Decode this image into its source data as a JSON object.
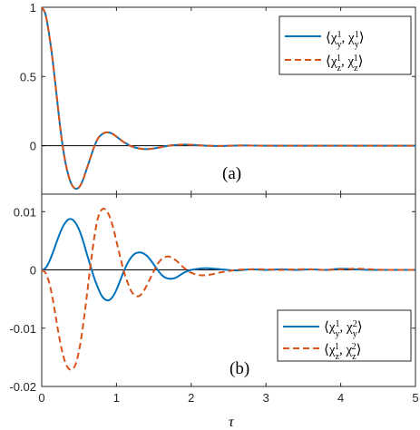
{
  "chart_data": [
    {
      "type": "line",
      "panel_label": "(a)",
      "xlim": [
        0,
        5
      ],
      "ylim": [
        -0.35,
        1
      ],
      "xticks": [
        0,
        1,
        2,
        3,
        4,
        5
      ],
      "yticks": [
        1,
        0.5,
        0
      ],
      "ytick_labels": [
        "1",
        "0.5",
        "0"
      ],
      "legend_position": "top-right",
      "grid": false,
      "series": [
        {
          "name": "⟨χ¹_y, χ¹_y⟩",
          "style": "solid",
          "color": "#0072BD",
          "x": [
            0,
            0.05,
            0.1,
            0.15,
            0.2,
            0.25,
            0.3,
            0.35,
            0.4,
            0.45,
            0.5,
            0.55,
            0.6,
            0.65,
            0.7,
            0.75,
            0.8,
            0.85,
            0.9,
            0.95,
            1.0,
            1.05,
            1.1,
            1.15,
            1.2,
            1.3,
            1.4,
            1.5,
            1.6,
            1.7,
            1.8,
            1.9,
            2.0,
            2.1,
            2.2,
            2.4,
            2.6,
            2.8,
            3.0,
            3.5,
            4.0,
            4.5,
            5.0
          ],
          "y": [
            1.0,
            0.95,
            0.8,
            0.6,
            0.36,
            0.12,
            -0.07,
            -0.2,
            -0.28,
            -0.31,
            -0.3,
            -0.25,
            -0.17,
            -0.09,
            -0.01,
            0.05,
            0.08,
            0.095,
            0.095,
            0.085,
            0.065,
            0.045,
            0.025,
            0.01,
            -0.005,
            -0.02,
            -0.025,
            -0.02,
            -0.01,
            0.0,
            0.005,
            0.008,
            0.006,
            0.003,
            0.0,
            -0.002,
            0.001,
            0.001,
            0.0,
            0.0,
            0.0,
            0.0,
            0.0
          ]
        },
        {
          "name": "⟨χ¹_z, χ¹_z⟩",
          "style": "dashed",
          "color": "#D95319",
          "x": [
            0,
            0.05,
            0.1,
            0.15,
            0.2,
            0.25,
            0.3,
            0.35,
            0.4,
            0.45,
            0.5,
            0.55,
            0.6,
            0.65,
            0.7,
            0.75,
            0.8,
            0.85,
            0.9,
            0.95,
            1.0,
            1.05,
            1.1,
            1.15,
            1.2,
            1.3,
            1.4,
            1.5,
            1.6,
            1.7,
            1.8,
            1.9,
            2.0,
            2.1,
            2.2,
            2.4,
            2.6,
            2.8,
            3.0,
            3.5,
            4.0,
            4.5,
            5.0
          ],
          "y": [
            1.0,
            0.95,
            0.8,
            0.6,
            0.36,
            0.12,
            -0.07,
            -0.2,
            -0.28,
            -0.31,
            -0.3,
            -0.25,
            -0.17,
            -0.09,
            -0.01,
            0.05,
            0.08,
            0.095,
            0.095,
            0.085,
            0.065,
            0.045,
            0.025,
            0.01,
            -0.005,
            -0.02,
            -0.025,
            -0.02,
            -0.01,
            0.0,
            0.005,
            0.008,
            0.006,
            0.003,
            0.0,
            -0.002,
            0.001,
            0.001,
            0.0,
            0.0,
            0.0,
            0.0,
            0.0
          ]
        }
      ]
    },
    {
      "type": "line",
      "panel_label": "(b)",
      "xlabel": "τ",
      "xlim": [
        0,
        5
      ],
      "ylim": [
        -0.02,
        0.013
      ],
      "xticks": [
        0,
        1,
        2,
        3,
        4,
        5
      ],
      "xtick_labels": [
        "0",
        "1",
        "2",
        "3",
        "4",
        "5"
      ],
      "yticks": [
        0.01,
        0,
        -0.01,
        -0.02
      ],
      "ytick_labels": [
        "0.01",
        "0",
        "-0.01",
        "-0.02"
      ],
      "legend_position": "bottom-right",
      "grid": false,
      "series": [
        {
          "name": "⟨χ¹_y, χ²_y⟩",
          "style": "solid",
          "color": "#0072BD",
          "x": [
            0,
            0.05,
            0.1,
            0.15,
            0.2,
            0.25,
            0.3,
            0.35,
            0.4,
            0.45,
            0.5,
            0.55,
            0.6,
            0.65,
            0.7,
            0.75,
            0.8,
            0.85,
            0.9,
            0.95,
            1.0,
            1.05,
            1.1,
            1.15,
            1.2,
            1.25,
            1.3,
            1.35,
            1.4,
            1.45,
            1.5,
            1.55,
            1.6,
            1.65,
            1.7,
            1.75,
            1.8,
            1.85,
            1.9,
            1.95,
            2.0,
            2.1,
            2.2,
            2.3,
            2.4,
            2.6,
            2.8,
            3.0,
            3.2,
            3.4,
            3.6,
            3.8,
            4.0,
            4.2,
            4.4,
            4.6,
            4.8,
            5.0
          ],
          "y": [
            0.0,
            0.0003,
            0.0014,
            0.003,
            0.0048,
            0.0065,
            0.0078,
            0.0086,
            0.0087,
            0.0081,
            0.0069,
            0.0051,
            0.0029,
            0.0008,
            -0.0013,
            -0.003,
            -0.0044,
            -0.0051,
            -0.0052,
            -0.0046,
            -0.0034,
            -0.0018,
            -0.0002,
            0.0012,
            0.0022,
            0.0028,
            0.003,
            0.0029,
            0.0025,
            0.0018,
            0.0009,
            0.0,
            -0.0008,
            -0.0013,
            -0.0015,
            -0.0015,
            -0.0013,
            -0.0009,
            -0.0005,
            -0.0002,
            0.0,
            0.0002,
            0.0003,
            0.0002,
            0.0001,
            -0.0001,
            0.0001,
            0.0,
            0.0001,
            0.0,
            0.0001,
            0.0,
            0.0002,
            0.0001,
            0.0,
            0.0,
            0.0,
            0.0
          ]
        },
        {
          "name": "⟨χ¹_z, χ²_z⟩",
          "style": "dashed",
          "color": "#D95319",
          "x": [
            0,
            0.05,
            0.1,
            0.15,
            0.2,
            0.25,
            0.3,
            0.35,
            0.4,
            0.45,
            0.5,
            0.55,
            0.6,
            0.65,
            0.7,
            0.75,
            0.8,
            0.85,
            0.9,
            0.95,
            1.0,
            1.05,
            1.1,
            1.15,
            1.2,
            1.25,
            1.3,
            1.35,
            1.4,
            1.45,
            1.5,
            1.55,
            1.6,
            1.65,
            1.7,
            1.75,
            1.8,
            1.85,
            1.9,
            1.95,
            2.0,
            2.1,
            2.2,
            2.3,
            2.4,
            2.5,
            2.6,
            2.8,
            3.0,
            3.2,
            3.4,
            3.6,
            3.8,
            4.0,
            4.2,
            4.4,
            4.6,
            4.8,
            5.0
          ],
          "y": [
            0.0,
            -0.0005,
            -0.0022,
            -0.0052,
            -0.009,
            -0.0126,
            -0.0153,
            -0.0168,
            -0.0171,
            -0.0163,
            -0.0138,
            -0.0098,
            -0.0048,
            0.0005,
            0.0053,
            0.0088,
            0.0103,
            0.0104,
            0.0094,
            0.0075,
            0.0049,
            0.0022,
            -0.0003,
            -0.0022,
            -0.0037,
            -0.0044,
            -0.0045,
            -0.0039,
            -0.0028,
            -0.0015,
            -0.0002,
            0.001,
            0.0018,
            0.0022,
            0.0023,
            0.002,
            0.0016,
            0.001,
            0.0004,
            -0.0001,
            -0.0005,
            -0.0009,
            -0.0009,
            -0.0007,
            -0.0004,
            -0.0002,
            0.0,
            0.0001,
            0.0001,
            0.0,
            0.0001,
            0.0001,
            0.0,
            0.0001,
            0.0002,
            0.0001,
            0.0,
            0.0,
            0.0
          ]
        }
      ]
    }
  ]
}
